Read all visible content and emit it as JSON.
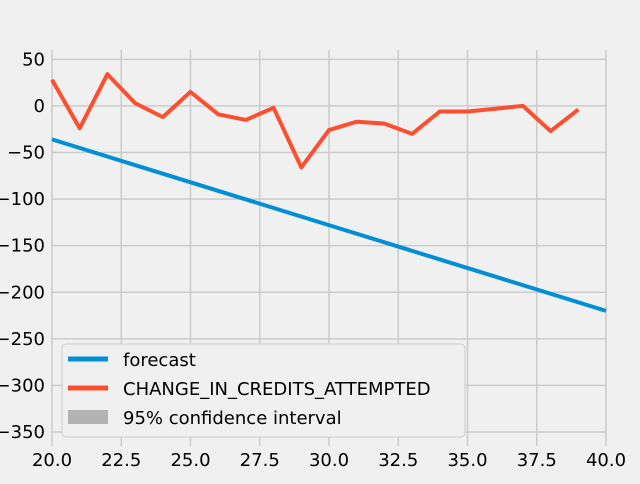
{
  "chart_data": {
    "type": "line",
    "title": "",
    "xlabel": "",
    "ylabel": "",
    "xlim": [
      20,
      40
    ],
    "ylim": [
      -365,
      60
    ],
    "x_ticks": [
      20.0,
      22.5,
      25.0,
      27.5,
      30.0,
      32.5,
      35.0,
      37.5,
      40.0
    ],
    "x_tick_labels": [
      "20.0",
      "22.5",
      "25.0",
      "27.5",
      "30.0",
      "32.5",
      "35.0",
      "37.5",
      "40.0"
    ],
    "y_ticks": [
      50,
      0,
      -50,
      -100,
      -150,
      -200,
      -250,
      -300,
      -350
    ],
    "y_tick_labels": [
      "50",
      "0",
      "−50",
      "−100",
      "−150",
      "−200",
      "−250",
      "−300",
      "−350"
    ],
    "grid": true,
    "legend_position": "lower-left",
    "series": [
      {
        "name": "forecast",
        "color": "#008fd5",
        "x": [
          20,
          40
        ],
        "y": [
          -36,
          -220
        ]
      },
      {
        "name": "CHANGE_IN_CREDITS_ATTEMPTED",
        "color": "#fc4f30",
        "x": [
          20,
          21,
          22,
          23,
          24,
          25,
          26,
          27,
          28,
          29,
          30,
          31,
          32,
          33,
          34,
          35,
          36,
          37,
          38,
          39
        ],
        "y": [
          28,
          -24,
          34,
          3,
          -12,
          15,
          -9,
          -15,
          -2,
          -66,
          -26,
          -17,
          -19,
          -30,
          -6,
          -6,
          -3,
          0,
          -27,
          -4
        ]
      }
    ],
    "confidence_interval": {
      "name": "95% confidence interval",
      "color": "#b3b3b3"
    }
  }
}
